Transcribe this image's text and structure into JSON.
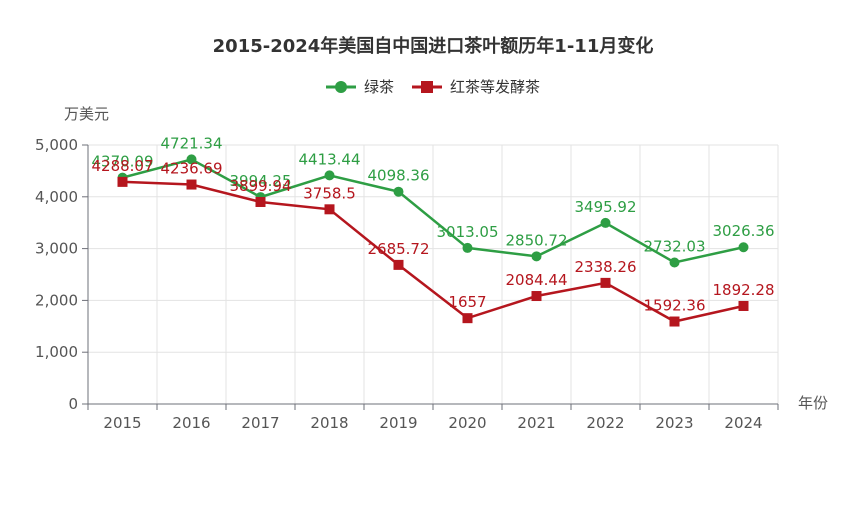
{
  "chart_data": {
    "type": "line",
    "title": "2015-2024年美国自中国进口茶叶额历年1-11月变化",
    "xlabel": "年份",
    "ylabel": "万美元",
    "categories": [
      "2015",
      "2016",
      "2017",
      "2018",
      "2019",
      "2020",
      "2021",
      "2022",
      "2023",
      "2024"
    ],
    "ylim": [
      0,
      5000
    ],
    "yticks": [
      "0",
      "1,000",
      "2,000",
      "3,000",
      "4,000",
      "5,000"
    ],
    "grid": true,
    "legend_position": "top-center",
    "series": [
      {
        "name": "绿茶",
        "color": "#2e9e44",
        "marker": "circle",
        "values": [
          4370.09,
          4721.34,
          3994.25,
          4413.44,
          4098.36,
          3013.05,
          2850.72,
          3495.92,
          2732.03,
          3026.36
        ],
        "labels": [
          "4370.09",
          "4721.34",
          "3994.25",
          "4413.44",
          "4098.36",
          "3013.05",
          "2850.72",
          "3495.92",
          "2732.03",
          "3026.36"
        ]
      },
      {
        "name": "红茶等发酵茶",
        "color": "#b5161e",
        "marker": "square",
        "values": [
          4288.07,
          4236.69,
          3899.94,
          3758.5,
          2685.72,
          1657,
          2084.44,
          2338.26,
          1592.36,
          1892.28
        ],
        "labels": [
          "4288.07",
          "4236.69",
          "3899.94",
          "3758.5",
          "2685.72",
          "1657",
          "2084.44",
          "2338.26",
          "1592.36",
          "1892.28"
        ]
      }
    ]
  }
}
